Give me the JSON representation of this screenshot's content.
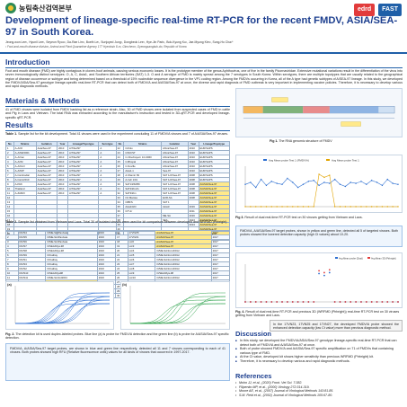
{
  "header": {
    "org": "농림축산검역본부",
    "partners": [
      "edrd",
      "FAST"
    ],
    "title": "Development of lineage-specific real-time RT-PCR for the recent FMDV, ASIA/SEA-97 in South Korea.",
    "authors": "Jeong-won Lee¹, Hyunil Lee¹, Seyeon Ryoo¹, Da-Rae Lim¹, Boeth Le¹, Sunjoyed Jung¹, Dongbeok Lee¹, Hye-Jin Park¹, Bok-Kyung Ku¹, Jae-Myung Kim¹, Sung-Ho Cha¹*",
    "affiliation": "¹ Foot-and-mouth disease division, Animal and Plant Quarantine Agency 177 Hyeoksin 8-ro, Gimcheon, Gyeongsangbuk-do, Republic of Korea"
  },
  "intro": {
    "heading": "Introduction",
    "body": "Foot and mouth disease (FMD) are highly contagious in cloven-hoof animals, causing serious economic losses. It is the prototype member of the genus Aphthovirus, one of five in the family Picornaviridae. Extensive mutational variations result in the differentiation of the virus into seven immunologically distinct serotypes: O, A, C, Asia1, and Southern African territories (SAT) 1-3. O and A serotype of FMD is mainly spread among the 7 serotypes in South Korea. Within serotypes, there are multiple topotypes that are usually related to the geographical region of disease occurrence or subtype and being determined based on a threshold of 15% nucleotide sequence divergence in the VP1 coding region. Among the FMDVs occurring in Korea, all of the A type had genetic subtypes of A/SEA-97 lineage. In this study, we developed the FMDV/ASIA/Sea-97 genotype lineage-specific real-time RT-PCR that can detect both of FMDV/A and A/ASIA/Sea-97 at once, the diverse and rapid diagnosis of FMD outbreak is very important in implementing vaccine policies. Therefore, it is necessary to develop various and rapid diagnostic methods."
  },
  "materials": {
    "heading": "Materials & Methods",
    "body": "41 of FMD viruses were isolated from FMDV banking list as a reference strain. Also, 30 of FMD viruses were isolated from suspected cases of FMD in cattle and Pig in Laos and Vietnam. The total RNA was extracted according to the manufacture's instruction and tested in 3D-qRT-PCR and developed lineage-specific qRT-PCR."
  },
  "fig1": {
    "caption_label": "Fig 1.",
    "caption_text": "The RNA genomic structure of FMDV"
  },
  "results": {
    "heading": "Results",
    "table1_caption_label": "Table 1.",
    "table1_caption_text": "Sample list for the kit development. Total 41 viruses were used in the experiment concluding 11 of FMDV/A viruses and 7 of A/ASIA/Sea-97 viruses.",
    "table1_headers": [
      "No",
      "Strains",
      "Isolation",
      "Year",
      "Lineage/Topotype",
      "Serotype",
      "No",
      "Strains",
      "Isolation",
      "Year",
      "Lineage/Topotype"
    ],
    "table1_rows": [
      [
        "1",
        "A-A/IO",
        "Asia/Sea-97",
        "2010",
        "A/Tibet/97",
        "A",
        "22",
        "C/Zulu",
        "Africa/Sea-97",
        "2010",
        "EUR/SAPS"
      ],
      [
        "2",
        "A-A/Mil/2001",
        "Asia/Sea-97",
        "2010",
        "A/Tibet/97",
        "A",
        "23",
        "C/NO/ST",
        "Africa/Sea-97",
        "2010",
        "EUR/SAPS"
      ],
      [
        "3",
        "A-A/Iran",
        "Asia/Sea-97",
        "2010",
        "A/Tibet/97",
        "A",
        "24",
        "C-Oberbayern 1/1/1960",
        "Africa/Sea-97",
        "2010",
        "EUR/SAPS"
      ],
      [
        "4",
        "A-A/IN/",
        "Asia/Sea-97",
        "2010",
        "A/Tibet/97",
        "A",
        "25",
        "C-Bhopal",
        "Africa/Sea-97",
        "2010",
        "EUR/SAPS"
      ],
      [
        "5",
        "A-A/KLO",
        "Asia/Sea-97",
        "2010",
        "A/Tibet/97",
        "A",
        "26",
        "C-Noville",
        "Africa/Sea-97",
        "2010",
        "EUR/SAPS"
      ],
      [
        "6",
        "A-A/NIP",
        "Asia/Sea-97",
        "2010",
        "A/Tibet/97",
        "A",
        "27",
        "Asia1-1",
        "Sea-97",
        "2010",
        "EUR/SAPS"
      ],
      [
        "7",
        "A-Cambodia/",
        "Asia/Sea-97",
        "2010",
        "A/Tibet/97",
        "A",
        "28",
        "A-Shamir ISI",
        "SAT 1/A/Sea-97",
        "2008",
        "EUR/SAPS"
      ],
      [
        "8",
        "A-Cam/2010",
        "Asia/Sea-97",
        "2010",
        "A/Tibet/97",
        "A",
        "29",
        "A-Ind/ 1/01",
        "SAT 1/A/Sea-97",
        "2008",
        "EUR/SAPS"
      ],
      [
        "9",
        "A-PAK",
        "Asia/Sea-97",
        "2010",
        "A/Tibet/97",
        "A",
        "30",
        "SAT1/ZIM/89",
        "SAT 1/A/Sea-97",
        "2008",
        "A/ASIA/Sea-97"
      ],
      [
        "10",
        "Thailand",
        "Asia/Sea-97",
        "2010",
        "A/Tibet/97",
        "A",
        "31",
        "SAT2/Zim/G",
        "SAT 1/A/Sea-97",
        "2008",
        "A/ASIA/Sea-97"
      ],
      [
        "11",
        "A-ZAM/II",
        "Asia/Sea-97",
        "2010",
        "A/Tibet/97",
        "A",
        "32",
        "SAT3/Zim",
        "SAT 1/A/Sea-97",
        "2008",
        "A/ASIA/Sea-97"
      ],
      [
        "12",
        "",
        "",
        "",
        "",
        "",
        "33",
        "O1 Manisa",
        "EUR-SA",
        "2008",
        "A/ASIA/Sea-97"
      ],
      [
        "13",
        "",
        "",
        "",
        "",
        "",
        "34",
        "O/BFS",
        "SAT 1",
        "",
        "A/ASIA/Sea-97"
      ],
      [
        "14",
        "",
        "",
        "",
        "",
        "",
        "35",
        "Asia1/HK/",
        "Asia1/",
        "2016",
        "A/ASIA/Sea-97"
      ],
      [
        "15",
        "",
        "",
        "",
        "",
        "",
        "36",
        "O/T-1/",
        "",
        "2011",
        "A/ASIA/Sea-97"
      ],
      [
        "16",
        "",
        "",
        "",
        "",
        "",
        "37",
        "",
        "ME-SA",
        "2016",
        "A/ASIA/Sea-97"
      ],
      [
        "17",
        "",
        "",
        "",
        "",
        "",
        "38",
        "",
        "SEA",
        "2013",
        "A/ASIA/Sea-97"
      ],
      [
        "18",
        "",
        "",
        "",
        "",
        "",
        "39",
        "",
        "",
        "2013",
        "A/ASIA/Sea-97"
      ],
      [
        "19",
        "",
        "",
        "",
        "",
        "",
        "40",
        "",
        "",
        "",
        "A/ASIA/Sea-97"
      ],
      [
        "20",
        "",
        "",
        "",
        "",
        "",
        "41",
        "",
        "",
        "",
        "A/ASIA/Sea-97"
      ],
      [
        "21",
        "",
        "",
        "",
        "",
        "",
        "",
        "",
        "",
        "",
        ""
      ]
    ],
    "table2_caption_label": "Table 2.",
    "table2_caption_text": "Sample list obtained from Vietnam and Laos. Total 30 of isolated viruses were used for kit comparison between developed and WRFMD (Pirbright)",
    "table2_rows": [
      [
        "1",
        "DN/S4",
        "O/ME-SA/PanAsia",
        "2016",
        "16",
        "17VN/25",
        "A/ASIA/Sea-97",
        "2017"
      ],
      [
        "2",
        "DN/S5",
        "O/ME-SA/PanAsia",
        "2016",
        "17",
        "17VN/21",
        "A/ASIA/Sea-97",
        "2017"
      ],
      [
        "3",
        "DN/S6",
        "O/ME-SA/PanAsia",
        "2016",
        "18",
        "LAO",
        "A/ASIA/Sea-97",
        "2017"
      ],
      [
        "4",
        "DN/S7",
        "O/SEA/Mya-98",
        "2016",
        "19",
        "LA/3",
        "A/ASIA/Sea-97",
        "2017"
      ],
      [
        "5",
        "DN/S8",
        "O/SEA/Mya-98",
        "2016",
        "20",
        "LA/4",
        "O/ME-SA/Ind-2001d",
        "2017"
      ],
      [
        "6",
        "DN/S9",
        "O/Cathay",
        "2016",
        "21",
        "LA/5",
        "O/ME-SA/Ind-2001d",
        "2017"
      ],
      [
        "7",
        "DN/S1",
        "O/Cathay",
        "2016",
        "22",
        "LA/6",
        "O/ME-SA/Ind-2001d",
        "2017"
      ],
      [
        "8",
        "DN/S3",
        "O/Cathay",
        "2016",
        "23",
        "LA/7",
        "O/ME-SA/Ind-2001d",
        "2017"
      ],
      [
        "9",
        "DN/S2",
        "O/Cathay",
        "2016",
        "24",
        "LA/8",
        "O/ME-SA/Ind-2001d",
        "2017"
      ],
      [
        "10",
        "DN/S10",
        "O/SEA/Mya98",
        "2016",
        "25",
        "LA/9",
        "O/SEA/Mya-98",
        "2017"
      ],
      [
        "11",
        "DN/S11",
        "O/ME-SA/Ind2001",
        "2016",
        "26",
        "LA/10",
        "O/ME-SA/Ind-2001d",
        "2017"
      ],
      [
        "12",
        "DN/S12",
        "A/ASIA/Sea-97",
        "2016",
        "27",
        "LA/11",
        "O/ME-SA/Ind-2001d",
        "2017"
      ],
      [
        "13",
        "DN/S13",
        "A/ASIA/Sea-97",
        "2016",
        "28",
        "LA/12",
        "O/ME-SA/Ind-2001d",
        "2017"
      ],
      [
        "14",
        "17VN/23",
        "A/ASIA/Sea-97",
        "2017",
        "29",
        "LA/13",
        "O/ME-SA/Ind-2001d",
        "2017"
      ],
      [
        "15",
        "17VN/24",
        "A/ASIA/Sea-97",
        "2017",
        "30",
        "LA/14",
        "O/ME-SA/Ind-2001d",
        "2017"
      ]
    ],
    "fig2_caption_label": "Fig. 2.",
    "fig2_caption_text": "The detection kit is used duplex-labeled probes. Blue line (a) is probe for FMDV/A detection and the green line (b) is probe for A/ASIA/Sea-97 specific detection.",
    "fig2_panel_a": "(a)",
    "fig2_panel_b": "(b)",
    "fig2_body": "FMDV/A, A/ASIA/Sea-97 target probes, are shown in blue and green line respectively, detected all 11 and 7 viruses corresponding to each of 41 viruses. Both probes showed high RFU (Relative fluorescence units) values for all kinds of viruses that occurred in 1997-2017.",
    "fig3_caption_label": "Fig 3.",
    "fig3_caption_text": "Result of dual real-time RT-PCR test on 30 viruses getting from Vietnam and Laos.",
    "fig3_body": "FMDV/A, A/ASIA/Sea-97 target probes, shown in yellow and green line, detected all 5 of targeted viruses. Both probes showed the lowered detection capacity (high Ct values) about 10-20.",
    "fig4_caption_label": "Fig. 4.",
    "fig4_caption_text": "Result of dual real-time RT-PCR and previous 3D (WRFMD (Pirbright)) real-time RT-PCR test on 30 viruses getting from Vietnam and Laos.",
    "fig4_body": "In the 17VN23, 17VN25 and 17VN27, the developed FMDV/A probe showed the enhanced detection capacity (low Ct value) more than previous diagnostic method."
  },
  "discussion": {
    "heading": "Discussion",
    "bullets": [
      "In this study, we developed the FMDV/A/ASIA/Sea-97 genotype lineage-specific real-time RT-PCR that can detect both of FMDV/A and A/ASIA/Sea-97 at once.",
      "Both of probe showed FMDV/A and A/ASIA/Sea-97 specific amplification on 71 of FMDVs that containing various type of FMD.",
      "At the Ct value, developed kit shows higher sensitivity than previous WRFMD (Pirbright) kit.",
      "Therefore, it is necessary to develop various and rapid diagnostic methods."
    ]
  },
  "references": {
    "heading": "References",
    "items": [
      "Mohn JJ, et al., (2020) Front. Vet Sci. 7:382.",
      "Filipenko MP, et al., (2000) Virology 272:314-319.",
      "Moore AE, et al., (2007) Journal of Virological Methods 143:81-85.",
      "S.M. Reid et al., (2002) Journal of Virological Methods 105:67-80."
    ]
  },
  "chart_data": [
    {
      "type": "line",
      "title": "",
      "legend": [
        "Avg Mean probe Test 1 (FMDV/A)",
        "Avg Mean probe Test 1"
      ],
      "legend_placement": "top",
      "series": [
        {
          "name": "Avg Mean probe Test 1 (FMDV/A)",
          "values": [
            22,
            24,
            19,
            27,
            21,
            25,
            23,
            22,
            28,
            24,
            19,
            22,
            25,
            26,
            21,
            24,
            23,
            27,
            22,
            20,
            24,
            23,
            25,
            22,
            26,
            24,
            21,
            27,
            23,
            22
          ]
        },
        {
          "name": "Avg Mean probe Test 1",
          "values": [
            0,
            0,
            0,
            0,
            0,
            0,
            0,
            0,
            0,
            0,
            0,
            0,
            0,
            0,
            32,
            29,
            31,
            0,
            0,
            0,
            0,
            0,
            0,
            0,
            0,
            0,
            0,
            0,
            0,
            0
          ]
        }
      ],
      "grid": false
    },
    {
      "type": "scatter",
      "title": "",
      "legend": [
        "Avg Mean probe (Dual)",
        "Avg Mean 3D (Pirbright)"
      ],
      "legend_placement": "top-right",
      "series": [
        {
          "name": "Avg Mean probe (Dual)",
          "values": [
            0,
            0,
            0,
            0,
            0,
            0,
            0,
            0,
            0,
            0,
            0,
            0,
            0,
            0,
            30,
            28,
            31,
            0,
            0,
            0,
            0,
            0,
            0,
            0,
            0,
            0,
            0,
            0,
            0,
            0
          ]
        },
        {
          "name": "Avg Mean 3D (Pirbright)",
          "values": [
            0,
            0,
            0,
            0,
            0,
            0,
            0,
            0,
            0,
            0,
            0,
            0,
            0,
            0,
            33,
            31,
            34,
            0,
            0,
            0,
            0,
            0,
            0,
            0,
            0,
            0,
            0,
            0,
            0,
            0
          ]
        }
      ],
      "grid": false
    }
  ]
}
